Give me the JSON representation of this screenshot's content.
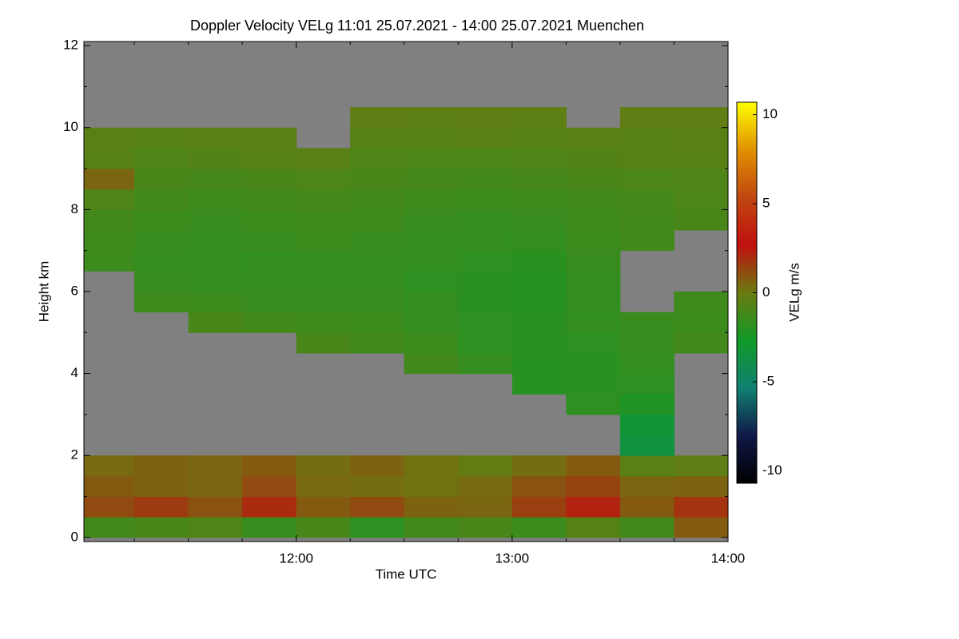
{
  "chart_data": {
    "type": "heatmap",
    "title": "Doppler Velocity VELg   11:01 25.07.2021 - 14:00 25.07.2021 Muenchen",
    "xlabel": "Time UTC",
    "ylabel": "Height km",
    "colorbar_label": "VELg m/s",
    "xlim": [
      11.0167,
      14.0
    ],
    "xticks": [
      {
        "value": 12,
        "label": "12:00"
      },
      {
        "value": 13,
        "label": "13:00"
      },
      {
        "value": 14,
        "label": "14:00"
      }
    ],
    "xminorticks": [
      11.25,
      11.5,
      11.75,
      12.25,
      12.5,
      12.75,
      13.25,
      13.5,
      13.75
    ],
    "ylim": [
      -0.1,
      12.1
    ],
    "yticks": [
      0,
      2,
      4,
      6,
      8,
      10,
      12
    ],
    "yminorticks": [
      1,
      3,
      5,
      7,
      9,
      11
    ],
    "clim": [
      -10.7,
      10.7
    ],
    "cticks": [
      -10,
      -5,
      0,
      5,
      10
    ],
    "colorscale": [
      "#000000",
      "#101848",
      "#108070",
      "#109a28",
      "#6a7a10",
      "#c01010",
      "#c04810",
      "#e09000",
      "#ffff00"
    ],
    "missing_color": "#808080",
    "x_edges": [
      11.0167,
      11.25,
      11.5,
      11.75,
      12.0,
      12.25,
      12.5,
      12.75,
      13.0,
      13.25,
      13.5,
      13.75,
      14.0
    ],
    "y_edges": [
      0,
      0.5,
      1,
      1.5,
      2,
      2.5,
      3,
      3.5,
      4,
      4.5,
      5,
      5.5,
      6,
      6.5,
      7,
      7.5,
      8,
      8.5,
      9,
      9.5,
      10,
      10.5,
      11,
      11.5,
      12
    ],
    "z": [
      [
        -1.2,
        -1.0,
        -0.8,
        -1.5,
        -1.0,
        -1.8,
        -1.2,
        -1.0,
        -1.4,
        -0.6,
        -1.2,
        0.8
      ],
      [
        1.2,
        1.6,
        1.0,
        2.0,
        0.8,
        1.2,
        0.6,
        0.5,
        1.5,
        2.2,
        0.8,
        1.8
      ],
      [
        0.8,
        0.6,
        0.5,
        1.2,
        0.4,
        0.3,
        0.2,
        0.4,
        1.0,
        1.4,
        0.5,
        0.6
      ],
      [
        0.4,
        0.6,
        0.5,
        0.8,
        0.3,
        0.6,
        0.2,
        -0.2,
        0.3,
        0.8,
        -0.5,
        -0.3
      ],
      [
        null,
        null,
        null,
        null,
        null,
        null,
        null,
        null,
        null,
        null,
        -3.5,
        null
      ],
      [
        null,
        null,
        null,
        null,
        null,
        null,
        null,
        null,
        null,
        null,
        -3.2,
        null
      ],
      [
        null,
        null,
        null,
        null,
        null,
        null,
        null,
        null,
        null,
        -1.8,
        -2.2,
        null
      ],
      [
        null,
        null,
        null,
        null,
        null,
        null,
        null,
        null,
        -2.0,
        -1.9,
        -1.8,
        null
      ],
      [
        null,
        null,
        null,
        null,
        null,
        null,
        -1.2,
        -1.6,
        -2.0,
        -1.9,
        -1.7,
        null
      ],
      [
        null,
        null,
        null,
        null,
        -1.0,
        -1.2,
        -1.4,
        -1.8,
        -1.9,
        -1.8,
        -1.5,
        -1.2
      ],
      [
        null,
        null,
        -1.0,
        -1.2,
        -1.3,
        -1.4,
        -1.6,
        -1.8,
        -1.9,
        -1.7,
        -1.5,
        -1.4
      ],
      [
        null,
        -1.3,
        -1.4,
        -1.5,
        -1.5,
        -1.5,
        -1.7,
        -1.9,
        -2.0,
        -1.7,
        null,
        -1.3
      ],
      [
        null,
        -1.5,
        -1.6,
        -1.6,
        -1.6,
        -1.6,
        -1.8,
        -1.9,
        -2.0,
        -1.6,
        null,
        null
      ],
      [
        -1.4,
        -1.6,
        -1.7,
        -1.7,
        -1.6,
        -1.6,
        -1.7,
        -1.8,
        -1.9,
        -1.5,
        null,
        null
      ],
      [
        -1.3,
        -1.5,
        -1.6,
        -1.5,
        -1.4,
        -1.5,
        -1.6,
        -1.7,
        -1.7,
        -1.4,
        -1.2,
        null
      ],
      [
        -1.2,
        -1.4,
        -1.5,
        -1.4,
        -1.3,
        -1.3,
        -1.5,
        -1.6,
        -1.5,
        -1.3,
        -1.2,
        -1.0
      ],
      [
        -0.8,
        -1.2,
        -1.3,
        -1.2,
        -1.1,
        -1.2,
        -1.3,
        -1.4,
        -1.3,
        -1.2,
        -1.1,
        -0.9
      ],
      [
        0.5,
        -1.0,
        -1.1,
        -1.0,
        -0.9,
        -1.0,
        -1.1,
        -1.2,
        -1.1,
        -1.0,
        -0.9,
        -0.8
      ],
      [
        -0.6,
        -0.8,
        -0.7,
        -0.6,
        -0.5,
        -0.8,
        -0.9,
        -0.9,
        -0.8,
        -0.7,
        -0.6,
        -0.6
      ],
      [
        -0.5,
        -0.6,
        -0.5,
        -0.5,
        null,
        -0.6,
        -0.6,
        -0.5,
        -0.6,
        -0.5,
        -0.6,
        -0.5
      ],
      [
        null,
        null,
        null,
        null,
        null,
        -0.3,
        -0.4,
        -0.3,
        -0.4,
        null,
        -0.3,
        -0.3
      ],
      [
        null,
        null,
        null,
        null,
        null,
        null,
        null,
        null,
        null,
        null,
        null,
        null
      ],
      [
        null,
        null,
        null,
        null,
        null,
        null,
        null,
        null,
        null,
        null,
        null,
        null
      ],
      [
        null,
        null,
        null,
        null,
        null,
        null,
        null,
        null,
        null,
        null,
        null,
        null
      ]
    ]
  }
}
